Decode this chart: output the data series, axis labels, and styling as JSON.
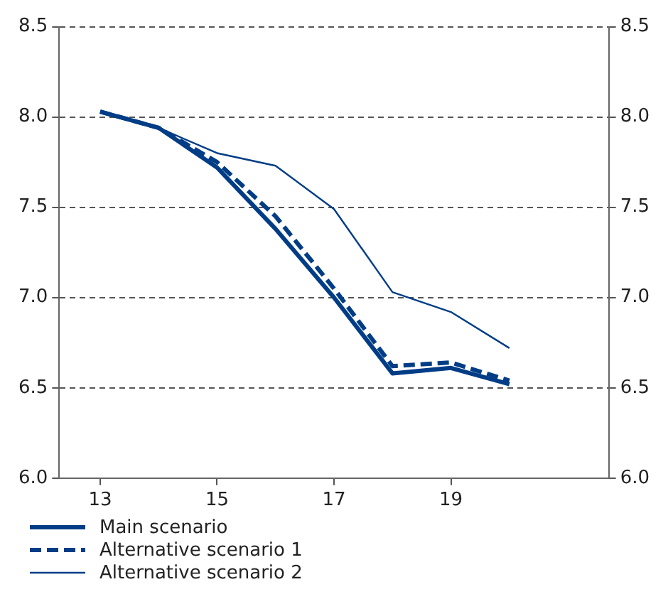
{
  "chart_data": {
    "type": "line",
    "x": [
      13,
      14,
      15,
      16,
      17,
      18,
      19,
      20
    ],
    "xlim": [
      12.3,
      21.7
    ],
    "xticks": [
      13,
      15,
      17,
      19
    ],
    "ylim": [
      6.0,
      8.5
    ],
    "yticks": [
      {
        "value": 6,
        "label": "6.0"
      },
      6.5,
      {
        "value": 7,
        "label": "7.0"
      },
      7.5,
      {
        "value": 8,
        "label": "8.0"
      },
      8.5
    ],
    "y2lim": [
      6.0,
      8.5
    ],
    "y2ticks": [
      {
        "value": 6,
        "label": "6.0"
      },
      6.5,
      {
        "value": 7,
        "label": "7.0"
      },
      7.5,
      {
        "value": 8,
        "label": "8.0"
      },
      8.5
    ],
    "grid": "y",
    "legend": "bottom",
    "marker": "none",
    "series": [
      {
        "name": "Main scenario",
        "color": "#003d86",
        "line_style": "solid",
        "values": [
          8.03,
          7.94,
          7.72,
          7.38,
          7.0,
          6.58,
          6.61,
          6.52
        ]
      },
      {
        "name": "Alternative scenario 1",
        "color": "#003d86",
        "line_style": "dashed",
        "values": [
          8.03,
          7.94,
          7.75,
          7.45,
          7.05,
          6.62,
          6.64,
          6.54
        ]
      },
      {
        "name": "Alternative scenario 2",
        "color": "#003d86",
        "line_style": "solid",
        "values": [
          8.03,
          7.94,
          7.8,
          7.73,
          7.49,
          7.03,
          6.92,
          6.72
        ]
      }
    ]
  }
}
